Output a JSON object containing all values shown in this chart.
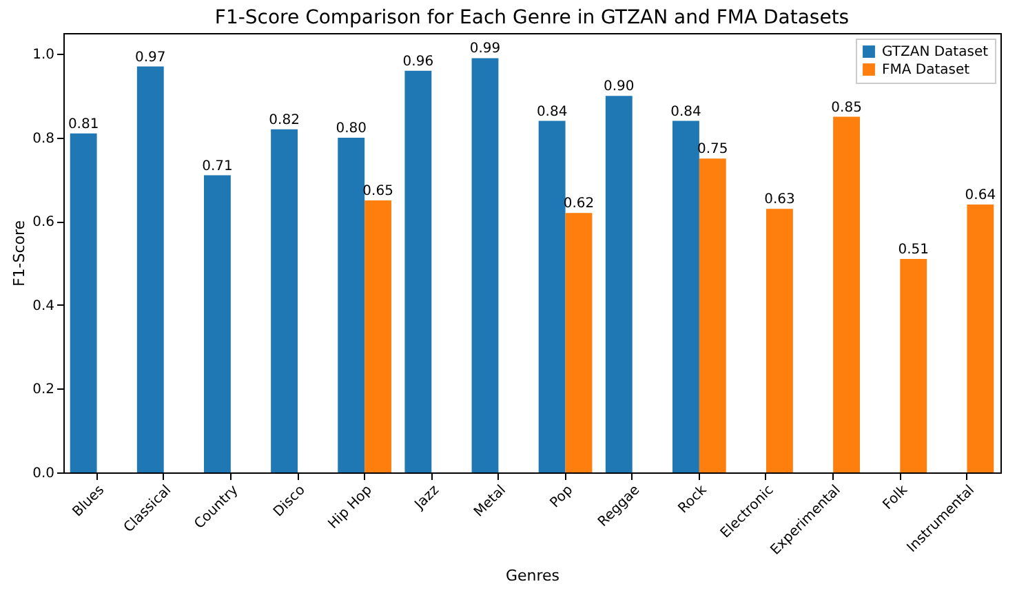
{
  "chart_data": {
    "type": "bar",
    "title": "F1-Score Comparison for Each Genre in GTZAN and FMA Datasets",
    "xlabel": "Genres",
    "ylabel": "F1-Score",
    "categories": [
      "Blues",
      "Classical",
      "Country",
      "Disco",
      "Hip Hop",
      "Jazz",
      "Metal",
      "Pop",
      "Reggae",
      "Rock",
      "Electronic",
      "Experimental",
      "Folk",
      "Instrumental"
    ],
    "series": [
      {
        "name": "GTZAN Dataset",
        "color": "#1f77b4",
        "values": [
          0.81,
          0.97,
          0.71,
          0.82,
          0.8,
          0.96,
          0.99,
          0.84,
          0.9,
          0.84,
          null,
          null,
          null,
          null
        ],
        "value_labels": [
          "0.81",
          "0.97",
          "0.71",
          "0.82",
          "0.80",
          "0.96",
          "0.99",
          "0.84",
          "0.90",
          "0.84",
          null,
          null,
          null,
          null
        ]
      },
      {
        "name": "FMA Dataset",
        "color": "#ff7f0e",
        "values": [
          null,
          null,
          null,
          null,
          0.65,
          null,
          null,
          0.62,
          null,
          0.75,
          0.63,
          0.85,
          0.51,
          0.64
        ],
        "value_labels": [
          null,
          null,
          null,
          null,
          "0.65",
          null,
          null,
          "0.62",
          null,
          "0.75",
          "0.63",
          "0.85",
          "0.51",
          "0.64"
        ]
      }
    ],
    "ylim": [
      0,
      1.05
    ],
    "yticks": [
      {
        "value": 0,
        "label": "0.0"
      },
      {
        "value": 0.2,
        "label": "0.2"
      },
      {
        "value": 0.4,
        "label": "0.4"
      },
      {
        "value": 0.6,
        "label": "0.6"
      },
      {
        "value": 0.8,
        "label": "0.8"
      },
      {
        "value": 1,
        "label": "1.0"
      }
    ],
    "legend": "top right",
    "grid": false
  }
}
